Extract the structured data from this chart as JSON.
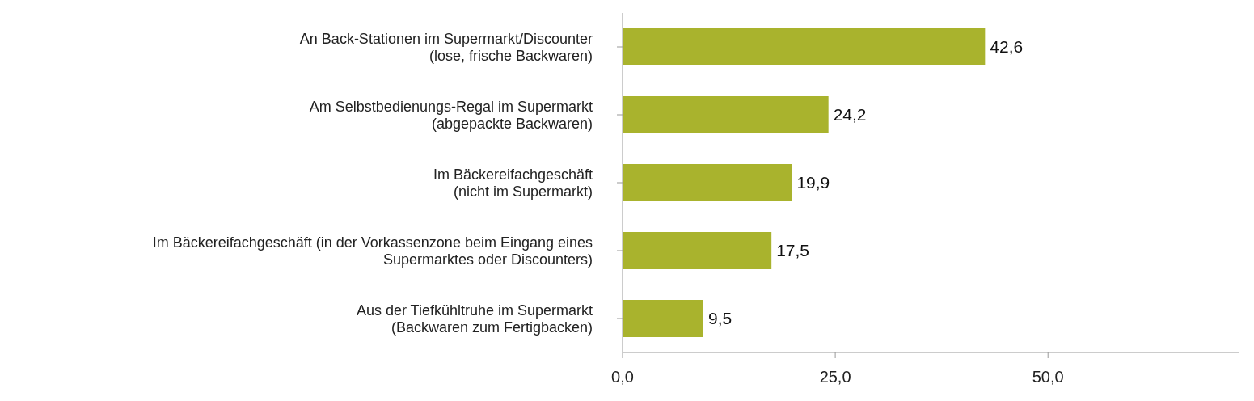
{
  "chart_data": {
    "type": "bar",
    "orientation": "horizontal",
    "categories": [
      "An Back-Stationen im Supermarkt/Discounter\n(lose, frische Backwaren)",
      "Am Selbstbedienungs-Regal im Supermarkt\n(abgepackte Backwaren)",
      "Im Bäckereifachgeschäft\n(nicht im Supermarkt)",
      "Im Bäckereifachgeschäft (in der Vorkassenzone beim Eingang eines\nSupermarktes oder Discounters)",
      "Aus der Tiefkühltruhe im Supermarkt\n(Backwaren zum Fertigbacken)"
    ],
    "values": [
      42.6,
      24.2,
      19.9,
      17.5,
      9.5
    ],
    "value_labels": [
      "42,6",
      "24,2",
      "19,9",
      "17,5",
      "9,5"
    ],
    "color": "#a9b32d",
    "xlim": [
      0,
      72.5
    ],
    "xticks": [
      {
        "value": 0,
        "label": "0,0"
      },
      {
        "value": 25,
        "label": "25,0"
      },
      {
        "value": 50,
        "label": "50,0"
      }
    ],
    "grid": false,
    "legend": false
  }
}
